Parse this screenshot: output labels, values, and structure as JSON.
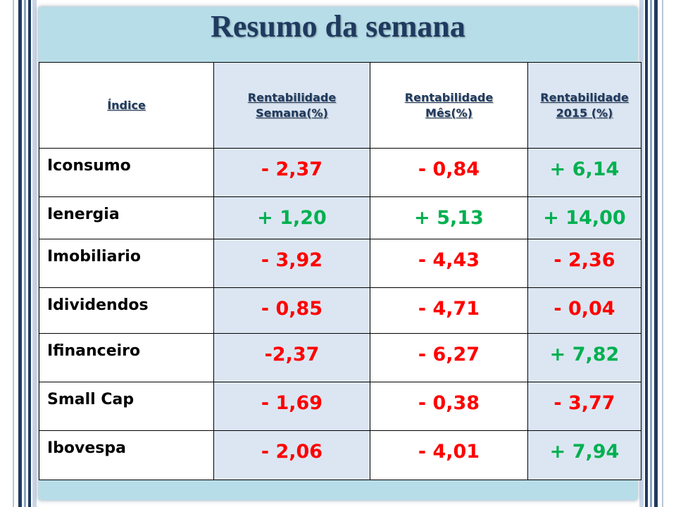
{
  "title": "Resumo da semana",
  "colors": {
    "negative": "#ff0000",
    "positive": "#00b050",
    "header_text": "#1f3a5f",
    "slide_background": "#b7dde8",
    "shaded_column": "#dce6f2"
  },
  "table": {
    "headers": [
      {
        "line1": "Índice",
        "line2": ""
      },
      {
        "line1": "Rentabilidade",
        "line2": "Semana(%)"
      },
      {
        "line1": "Rentabilidade",
        "line2": "Mês(%)"
      },
      {
        "line1": "Rentabilidade",
        "line2": "2015 (%)"
      }
    ],
    "rows": [
      {
        "name": "Iconsumo",
        "week": "- 2,37",
        "month": "- 0,84",
        "year": "+ 6,14",
        "week_sign": "neg",
        "month_sign": "neg",
        "year_sign": "pos"
      },
      {
        "name": "Ienergia",
        "week": "+ 1,20",
        "month": "+ 5,13",
        "year": "+ 14,00",
        "week_sign": "pos",
        "month_sign": "pos",
        "year_sign": "pos"
      },
      {
        "name": "Imobiliario",
        "week": "- 3,92",
        "month": "- 4,43",
        "year": "- 2,36",
        "week_sign": "neg",
        "month_sign": "neg",
        "year_sign": "neg"
      },
      {
        "name": "Idividendos",
        "week": "- 0,85",
        "month": "- 4,71",
        "year": "- 0,04",
        "week_sign": "neg",
        "month_sign": "neg",
        "year_sign": "neg"
      },
      {
        "name": "Ifinanceiro",
        "week": "-2,37",
        "month": "- 6,27",
        "year": "+ 7,82",
        "week_sign": "neg",
        "month_sign": "neg",
        "year_sign": "pos"
      },
      {
        "name": "Small Cap",
        "week": "- 1,69",
        "month": "- 0,38",
        "year": "- 3,77",
        "week_sign": "neg",
        "month_sign": "neg",
        "year_sign": "neg"
      },
      {
        "name": "Ibovespa",
        "week": "- 2,06",
        "month": "- 4,01",
        "year": "+ 7,94",
        "week_sign": "neg",
        "month_sign": "neg",
        "year_sign": "pos"
      }
    ]
  }
}
